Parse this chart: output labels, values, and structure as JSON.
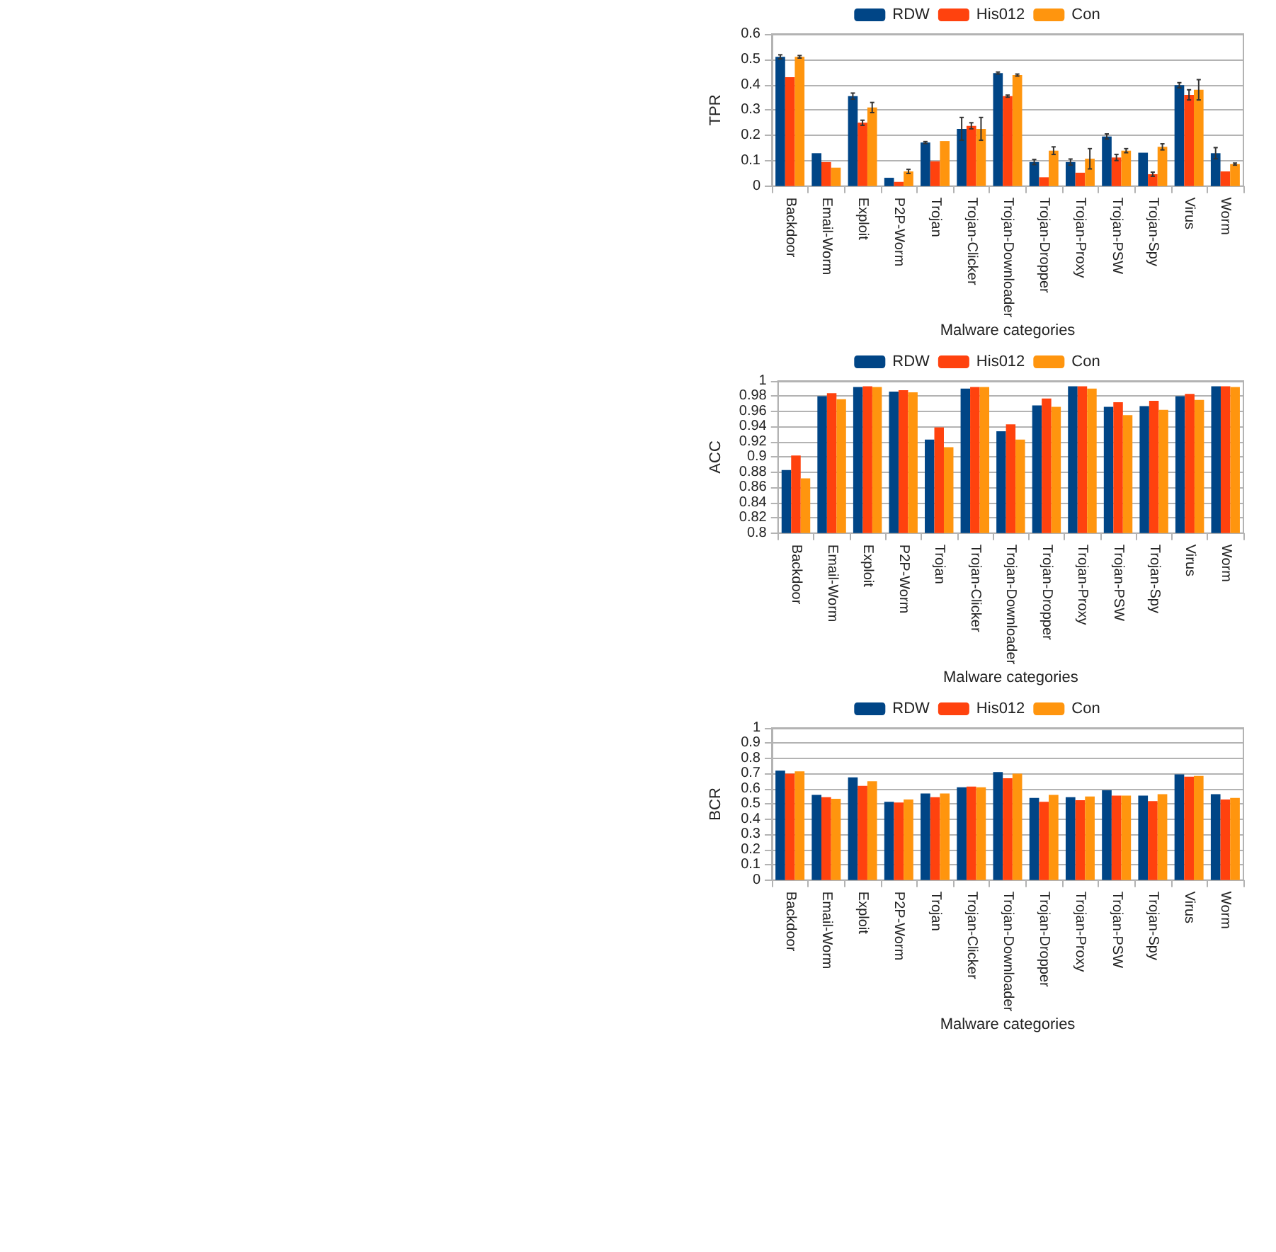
{
  "chart_data": [
    {
      "type": "bar",
      "xlabel": "Malware categories",
      "ylabel": "TPR",
      "legend": "top",
      "grid": "y",
      "categories": [
        "Backdoor",
        "Email-Worm",
        "Exploit",
        "P2P-Worm",
        "Trojan",
        "Trojan-Clicker",
        "Trojan-Downloader",
        "Trojan-Dropper",
        "Trojan-Proxy",
        "Trojan-PSW",
        "Trojan-Spy",
        "Virus",
        "Worm"
      ],
      "ylim": [
        0,
        0.6
      ],
      "yticks": [
        0,
        0.1,
        0.2,
        0.3,
        0.4,
        0.5,
        0.6
      ],
      "series": [
        {
          "name": "RDW",
          "color": "#004586",
          "values": [
            0.51,
            0.13,
            0.355,
            0.033,
            0.172,
            0.226,
            0.446,
            0.095,
            0.095,
            0.196,
            0.132,
            0.398,
            0.13
          ],
          "errors": [
            0.008,
            null,
            0.012,
            null,
            0.004,
            0.045,
            0.004,
            0.01,
            0.012,
            0.01,
            null,
            0.01,
            0.022
          ]
        },
        {
          "name": "His012",
          "color": "#ff420e",
          "values": [
            0.43,
            0.095,
            0.25,
            0.017,
            0.098,
            0.238,
            0.355,
            0.035,
            0.053,
            0.113,
            0.047,
            0.36,
            0.058
          ],
          "errors": [
            null,
            null,
            0.01,
            null,
            null,
            0.012,
            0.004,
            null,
            null,
            0.012,
            0.008,
            0.02,
            null
          ]
        },
        {
          "name": "Con",
          "color": "#ff950e",
          "values": [
            0.51,
            0.073,
            0.31,
            0.058,
            0.178,
            0.226,
            0.438,
            0.14,
            0.108,
            0.14,
            0.155,
            0.38,
            0.087
          ],
          "errors": [
            0.005,
            null,
            0.02,
            0.008,
            null,
            0.045,
            0.004,
            0.015,
            0.04,
            0.008,
            0.012,
            0.04,
            0.004
          ]
        }
      ]
    },
    {
      "type": "bar",
      "xlabel": "Malware categories",
      "ylabel": "ACC",
      "legend": "top",
      "grid": "y",
      "categories": [
        "Backdoor",
        "Email-Worm",
        "Exploit",
        "P2P-Worm",
        "Trojan",
        "Trojan-Clicker",
        "Trojan-Downloader",
        "Trojan-Dropper",
        "Trojan-Proxy",
        "Trojan-PSW",
        "Trojan-Spy",
        "Virus",
        "Worm"
      ],
      "ylim": [
        0.8,
        1
      ],
      "yticks": [
        0.8,
        0.82,
        0.84,
        0.86,
        0.88,
        0.9,
        0.92,
        0.94,
        0.96,
        0.98,
        1
      ],
      "series": [
        {
          "name": "RDW",
          "color": "#004586",
          "values": [
            0.883,
            0.98,
            0.992,
            0.986,
            0.923,
            0.99,
            0.934,
            0.968,
            0.993,
            0.966,
            0.967,
            0.98,
            0.993
          ]
        },
        {
          "name": "His012",
          "color": "#ff420e",
          "values": [
            0.902,
            0.984,
            0.993,
            0.988,
            0.939,
            0.992,
            0.943,
            0.977,
            0.993,
            0.972,
            0.974,
            0.983,
            0.993
          ]
        },
        {
          "name": "Con",
          "color": "#ff950e",
          "values": [
            0.872,
            0.976,
            0.992,
            0.985,
            0.913,
            0.992,
            0.923,
            0.966,
            0.99,
            0.955,
            0.962,
            0.975,
            0.992
          ]
        }
      ]
    },
    {
      "type": "bar",
      "xlabel": "Malware categories",
      "ylabel": "BCR",
      "legend": "top",
      "grid": "y",
      "categories": [
        "Backdoor",
        "Email-Worm",
        "Exploit",
        "P2P-Worm",
        "Trojan",
        "Trojan-Clicker",
        "Trojan-Downloader",
        "Trojan-Dropper",
        "Trojan-Proxy",
        "Trojan-PSW",
        "Trojan-Spy",
        "Virus",
        "Worm"
      ],
      "ylim": [
        0,
        1
      ],
      "yticks": [
        0,
        0.1,
        0.2,
        0.3,
        0.4,
        0.5,
        0.6,
        0.7,
        0.8,
        0.9,
        1
      ],
      "series": [
        {
          "name": "RDW",
          "color": "#004586",
          "values": [
            0.72,
            0.56,
            0.675,
            0.515,
            0.57,
            0.61,
            0.71,
            0.54,
            0.545,
            0.59,
            0.555,
            0.695,
            0.565
          ]
        },
        {
          "name": "His012",
          "color": "#ff420e",
          "values": [
            0.7,
            0.545,
            0.62,
            0.51,
            0.545,
            0.615,
            0.67,
            0.515,
            0.525,
            0.555,
            0.52,
            0.68,
            0.53
          ]
        },
        {
          "name": "Con",
          "color": "#ff950e",
          "values": [
            0.715,
            0.535,
            0.65,
            0.53,
            0.57,
            0.61,
            0.7,
            0.56,
            0.55,
            0.555,
            0.565,
            0.685,
            0.54
          ]
        }
      ]
    }
  ]
}
